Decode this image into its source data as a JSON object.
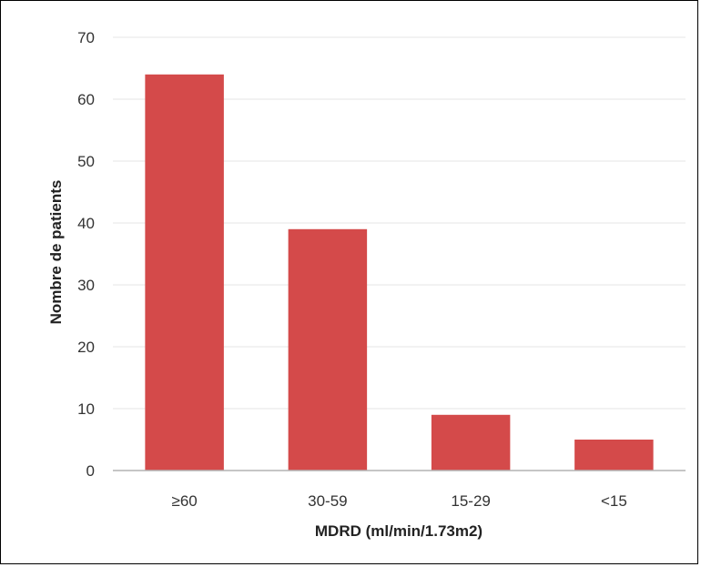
{
  "chart_data": {
    "type": "bar",
    "categories": [
      "≥60",
      "30-59",
      "15-29",
      "<15"
    ],
    "values": [
      64,
      39,
      9,
      5
    ],
    "xlabel": "MDRD (ml/min/1.73m2)",
    "ylabel": "Nombre de patients",
    "ylim": [
      0,
      70
    ],
    "yticks": [
      0,
      10,
      20,
      30,
      40,
      50,
      60,
      70
    ],
    "grid": true,
    "legend": "none",
    "bar_color": "#d44a4a",
    "grid_color": "#e6e6e6",
    "axis_color": "#b3b3b3"
  }
}
